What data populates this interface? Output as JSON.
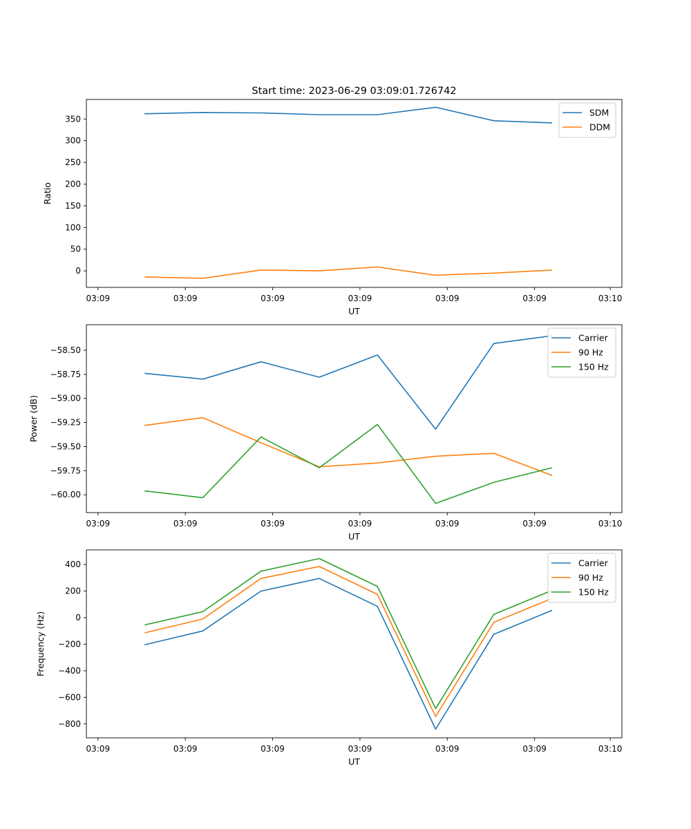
{
  "figure_title": "Start time: 2023-06-29 03:09:01.726742",
  "x_tick_labels": [
    "03:09",
    "03:09",
    "03:09",
    "03:09",
    "03:09",
    "03:09",
    "03:10"
  ],
  "colors": {
    "blue": "#1f77b4",
    "orange": "#ff7f0e",
    "green": "#2ca02c"
  },
  "chart_data": [
    {
      "type": "line",
      "title": "Start time: 2023-06-29 03:09:01.726742",
      "xlabel": "UT",
      "ylabel": "Ratio",
      "x": [
        1,
        2,
        3,
        4,
        5,
        6,
        7,
        8
      ],
      "xlim": [
        0,
        9.2
      ],
      "ylim": [
        -38,
        395
      ],
      "yticks": [
        0,
        50,
        100,
        150,
        200,
        250,
        300,
        350
      ],
      "ytick_labels": [
        "0",
        "50",
        "100",
        "150",
        "200",
        "250",
        "300",
        "350"
      ],
      "legend": "top-right",
      "series": [
        {
          "name": "SDM",
          "color": "#1f77b4",
          "values": [
            362,
            365,
            364,
            360,
            360,
            377,
            346,
            341
          ]
        },
        {
          "name": "DDM",
          "color": "#ff7f0e",
          "values": [
            -14,
            -17,
            2,
            0,
            9,
            -10,
            -5,
            2
          ]
        }
      ]
    },
    {
      "type": "line",
      "xlabel": "UT",
      "ylabel": "Power (dB)",
      "x": [
        1,
        2,
        3,
        4,
        5,
        6,
        7,
        8
      ],
      "xlim": [
        0,
        9.2
      ],
      "ylim": [
        -60.185,
        -58.235
      ],
      "yticks": [
        -60.0,
        -59.75,
        -59.5,
        -59.25,
        -59.0,
        -58.75,
        -58.5
      ],
      "ytick_labels": [
        "−60.00",
        "−59.75",
        "−59.50",
        "−59.25",
        "−59.00",
        "−58.75",
        "−58.50"
      ],
      "legend": "top-right",
      "series": [
        {
          "name": "Carrier",
          "color": "#1f77b4",
          "values": [
            -58.74,
            -58.8,
            -58.62,
            -58.78,
            -58.55,
            -59.32,
            -58.43,
            -58.35
          ]
        },
        {
          "name": "90 Hz",
          "color": "#ff7f0e",
          "values": [
            -59.28,
            -59.2,
            -59.46,
            -59.71,
            -59.67,
            -59.6,
            -59.57,
            -59.8
          ]
        },
        {
          "name": "150 Hz",
          "color": "#2ca02c",
          "values": [
            -59.96,
            -60.03,
            -59.4,
            -59.72,
            -59.27,
            -60.09,
            -59.87,
            -59.72
          ]
        }
      ]
    },
    {
      "type": "line",
      "xlabel": "UT",
      "ylabel": "Frequency (Hz)",
      "x": [
        1,
        2,
        3,
        4,
        5,
        6,
        7,
        8
      ],
      "xlim": [
        0,
        9.2
      ],
      "ylim": [
        -905,
        510
      ],
      "yticks": [
        -800,
        -600,
        -400,
        -200,
        0,
        200,
        400
      ],
      "ytick_labels": [
        "−800",
        "−600",
        "−400",
        "−200",
        "0",
        "200",
        "400"
      ],
      "legend": "top-right",
      "series": [
        {
          "name": "Carrier",
          "color": "#1f77b4",
          "values": [
            -205,
            -100,
            200,
            295,
            85,
            -840,
            -125,
            55
          ]
        },
        {
          "name": "90 Hz",
          "color": "#ff7f0e",
          "values": [
            -115,
            -10,
            295,
            385,
            175,
            -745,
            -35,
            145
          ]
        },
        {
          "name": "150 Hz",
          "color": "#2ca02c",
          "values": [
            -55,
            45,
            350,
            445,
            235,
            -685,
            25,
            205
          ]
        }
      ]
    }
  ]
}
